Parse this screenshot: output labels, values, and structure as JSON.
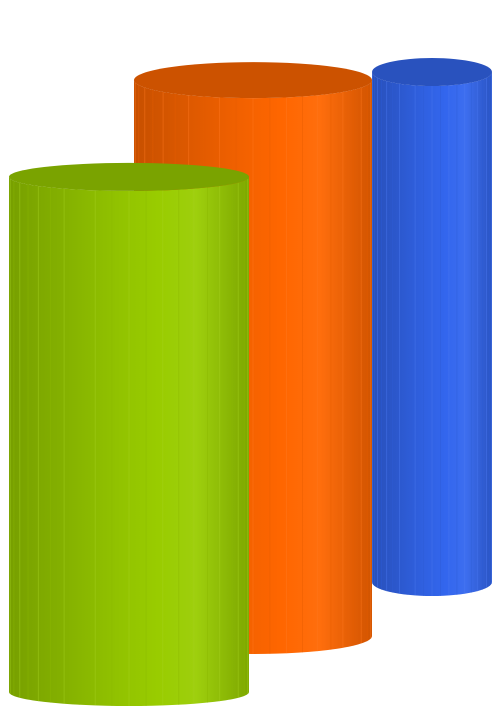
{
  "chart_data": {
    "type": "bar",
    "shape": "cylinder-3d",
    "title": "",
    "xlabel": "",
    "ylabel": "",
    "axes_visible": false,
    "grid": false,
    "legend": "none",
    "series": [
      {
        "values": [
          100
        ],
        "color": "#3366EE",
        "depth_order": 0
      },
      {
        "values": [
          109
        ],
        "color": "#FF6600",
        "depth_order": 1
      },
      {
        "values": [
          101
        ],
        "color": "#99CC00",
        "depth_order": 2
      }
    ]
  }
}
